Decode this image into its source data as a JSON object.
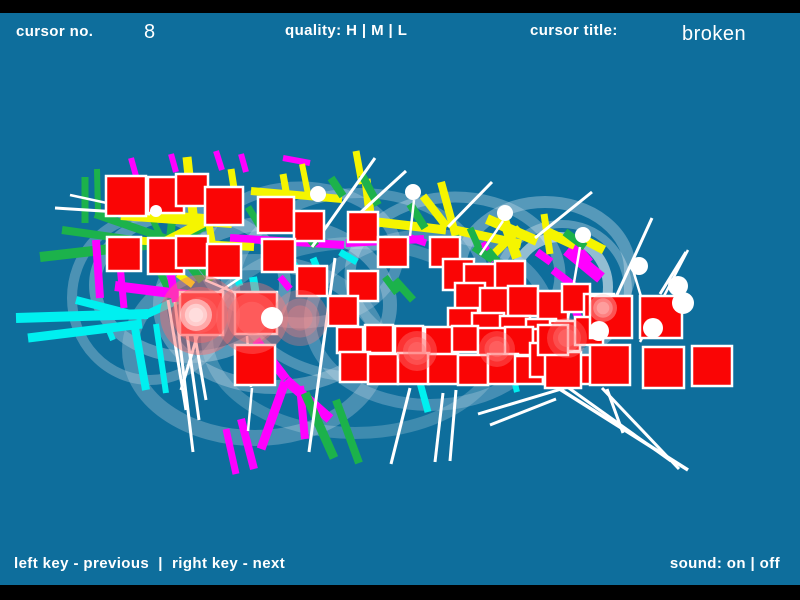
{
  "app": {
    "background": "#0E6E9C",
    "letterbox_color": "#000000",
    "text_color": "#FFFFFF"
  },
  "header": {
    "cursor_no_label": "cursor no.",
    "cursor_no_value": "8",
    "quality_label": "quality: H | M | L",
    "cursor_title_label": "cursor title:",
    "cursor_title_value": "broken"
  },
  "footer": {
    "nav_label": "left key - previous  |  right key - next",
    "sound_label": "sound: on | off"
  },
  "artwork": {
    "palette": {
      "y": "#F5F500",
      "g": "#1CB24B",
      "c": "#00F0F0",
      "m": "#FF00FF",
      "red": "#FA0505",
      "white": "#FFFFFF"
    },
    "rings": [
      [
        190,
        285,
        95,
        72,
        "rgba(255,255,255,0.30)",
        12
      ],
      [
        275,
        305,
        115,
        82,
        "rgba(165,195,215,0.45)",
        14
      ],
      [
        360,
        285,
        125,
        92,
        "rgba(255,255,255,0.25)",
        10
      ],
      [
        300,
        255,
        98,
        68,
        "rgba(185,210,228,0.35)",
        11
      ],
      [
        455,
        275,
        105,
        78,
        "rgba(255,255,255,0.28)",
        11
      ],
      [
        545,
        270,
        85,
        68,
        "rgba(195,218,232,0.40)",
        12
      ],
      [
        560,
        287,
        48,
        50,
        "rgba(255,255,255,0.55)",
        10
      ],
      [
        562,
        290,
        66,
        66,
        "rgba(255,255,255,0.30)",
        8
      ],
      [
        255,
        350,
        125,
        88,
        "rgba(160,192,212,0.40)",
        16
      ],
      [
        355,
        338,
        148,
        95,
        "rgba(255,255,255,0.20)",
        12
      ],
      [
        150,
        298,
        78,
        82,
        "rgba(178,205,222,0.38)",
        10
      ],
      [
        430,
        320,
        120,
        85,
        "rgba(200,220,235,0.30)",
        12
      ]
    ],
    "strokes": [
      [
        "g",
        40,
        257,
        172,
        242,
        10
      ],
      [
        "g",
        62,
        230,
        162,
        244,
        8
      ],
      [
        "g",
        95,
        214,
        170,
        240,
        8
      ],
      [
        "g",
        85,
        177,
        85,
        223,
        7
      ],
      [
        "g",
        97,
        169,
        98,
        214,
        6
      ],
      [
        "g",
        140,
        194,
        164,
        243,
        6
      ],
      [
        "g",
        176,
        186,
        169,
        248,
        8
      ],
      [
        "g",
        170,
        240,
        202,
        281,
        8
      ],
      [
        "g",
        172,
        242,
        206,
        226,
        8
      ],
      [
        "g",
        158,
        268,
        170,
        293,
        7
      ],
      [
        "g",
        201,
        267,
        212,
        281,
        6
      ],
      [
        "g",
        248,
        207,
        263,
        231,
        7
      ],
      [
        "c",
        16,
        318,
        148,
        314,
        10
      ],
      [
        "c",
        28,
        338,
        142,
        324,
        9
      ],
      [
        "c",
        76,
        300,
        142,
        317,
        8
      ],
      [
        "c",
        143,
        316,
        178,
        300,
        8
      ],
      [
        "c",
        134,
        322,
        146,
        390,
        8
      ],
      [
        "c",
        156,
        324,
        166,
        393,
        6
      ],
      [
        "c",
        108,
        328,
        113,
        340,
        6
      ],
      [
        "c",
        230,
        258,
        240,
        286,
        7
      ],
      [
        "c",
        253,
        277,
        261,
        324,
        8
      ],
      [
        "c",
        290,
        258,
        300,
        272,
        6
      ],
      [
        "c",
        313,
        258,
        322,
        280,
        7
      ],
      [
        "c",
        340,
        252,
        357,
        262,
        7
      ],
      [
        "c",
        470,
        271,
        479,
        288,
        7
      ],
      [
        "c",
        416,
        368,
        428,
        412,
        7
      ],
      [
        "c",
        432,
        352,
        444,
        358,
        6
      ],
      [
        "c",
        509,
        352,
        519,
        359,
        6
      ],
      [
        "c",
        509,
        360,
        517,
        392,
        6
      ],
      [
        "m",
        96,
        240,
        100,
        298,
        8
      ],
      [
        "m",
        119,
        254,
        124,
        308,
        7
      ],
      [
        "m",
        115,
        286,
        203,
        297,
        10
      ],
      [
        "m",
        170,
        271,
        176,
        302,
        8
      ],
      [
        "m",
        131,
        158,
        136,
        176,
        6
      ],
      [
        "m",
        171,
        154,
        176,
        172,
        6
      ],
      [
        "m",
        216,
        151,
        222,
        170,
        6
      ],
      [
        "m",
        241,
        154,
        246,
        172,
        6
      ],
      [
        "m",
        283,
        158,
        310,
        163,
        6
      ],
      [
        "m",
        230,
        238,
        344,
        245,
        8
      ],
      [
        "m",
        346,
        243,
        424,
        239,
        8
      ],
      [
        "m",
        383,
        245,
        400,
        251,
        7
      ],
      [
        "m",
        408,
        237,
        426,
        243,
        7
      ],
      [
        "m",
        256,
        340,
        286,
        379,
        9
      ],
      [
        "m",
        286,
        380,
        330,
        419,
        10
      ],
      [
        "m",
        285,
        382,
        261,
        449,
        9
      ],
      [
        "m",
        300,
        386,
        305,
        439,
        8
      ],
      [
        "m",
        241,
        419,
        254,
        469,
        8
      ],
      [
        "m",
        226,
        429,
        236,
        474,
        7
      ],
      [
        "m",
        280,
        277,
        290,
        289,
        7
      ],
      [
        "m",
        482,
        243,
        493,
        262,
        8
      ],
      [
        "m",
        537,
        252,
        551,
        262,
        8
      ],
      [
        "m",
        567,
        250,
        601,
        278,
        12
      ],
      [
        "m",
        553,
        270,
        574,
        286,
        8
      ],
      [
        "m",
        575,
        245,
        590,
        262,
        8
      ],
      [
        "m",
        576,
        312,
        584,
        331,
        8
      ],
      [
        "y",
        121,
        214,
        232,
        222,
        12
      ],
      [
        "y",
        128,
        240,
        254,
        247,
        8
      ],
      [
        "y",
        187,
        157,
        193,
        214,
        9
      ],
      [
        "y",
        153,
        180,
        160,
        214,
        7
      ],
      [
        "y",
        231,
        169,
        238,
        214,
        7
      ],
      [
        "y",
        251,
        191,
        342,
        199,
        8
      ],
      [
        "y",
        150,
        250,
        210,
        219,
        10
      ],
      [
        "y",
        209,
        224,
        215,
        259,
        7
      ],
      [
        "y",
        283,
        174,
        290,
        214,
        7
      ],
      [
        "y",
        356,
        151,
        362,
        184,
        7
      ],
      [
        "y",
        302,
        164,
        308,
        194,
        6
      ],
      [
        "y",
        178,
        274,
        193,
        285,
        7
      ],
      [
        "y",
        366,
        179,
        372,
        232,
        9
      ],
      [
        "y",
        377,
        222,
        446,
        230,
        9
      ],
      [
        "y",
        423,
        196,
        447,
        227,
        8
      ],
      [
        "y",
        441,
        182,
        456,
        237,
        8
      ],
      [
        "y",
        455,
        230,
        521,
        244,
        9
      ],
      [
        "y",
        487,
        219,
        537,
        241,
        10
      ],
      [
        "y",
        502,
        214,
        517,
        258,
        10
      ],
      [
        "y",
        520,
        228,
        492,
        256,
        8
      ],
      [
        "y",
        547,
        232,
        575,
        245,
        10
      ],
      [
        "y",
        544,
        214,
        550,
        254,
        7
      ],
      [
        "y",
        577,
        236,
        604,
        250,
        9
      ],
      [
        "g",
        331,
        178,
        343,
        196,
        8
      ],
      [
        "g",
        362,
        175,
        378,
        205,
        8
      ],
      [
        "g",
        410,
        204,
        425,
        228,
        8
      ],
      [
        "g",
        474,
        247,
        493,
        260,
        8
      ],
      [
        "g",
        436,
        244,
        460,
        238,
        7
      ],
      [
        "g",
        302,
        230,
        316,
        246,
        8
      ],
      [
        "g",
        385,
        277,
        397,
        293,
        7
      ],
      [
        "g",
        395,
        280,
        413,
        300,
        8
      ],
      [
        "g",
        305,
        393,
        334,
        458,
        9
      ],
      [
        "g",
        336,
        400,
        359,
        463,
        8
      ],
      [
        "g",
        462,
        305,
        472,
        315,
        6
      ],
      [
        "g",
        470,
        228,
        479,
        248,
        7
      ],
      [
        "g",
        488,
        250,
        498,
        262,
        7
      ],
      [
        "g",
        565,
        232,
        585,
        247,
        8
      ]
    ],
    "lines": [
      [
        55,
        208,
        150,
        214,
        3
      ],
      [
        70,
        195,
        148,
        212,
        2.5
      ],
      [
        205,
        280,
        245,
        297,
        2.5
      ],
      [
        240,
        278,
        207,
        300,
        2.5
      ],
      [
        312,
        247,
        375,
        158,
        3
      ],
      [
        360,
        213,
        406,
        171,
        3
      ],
      [
        448,
        227,
        492,
        182,
        3
      ],
      [
        414,
        200,
        410,
        236,
        2.5
      ],
      [
        503,
        221,
        480,
        255,
        2.5
      ],
      [
        535,
        238,
        592,
        192,
        3
      ],
      [
        580,
        247,
        566,
        330,
        2.5
      ],
      [
        600,
        332,
        652,
        218,
        3
      ],
      [
        688,
        250,
        640,
        342,
        2.5
      ],
      [
        660,
        294,
        686,
        252,
        3
      ],
      [
        646,
        313,
        633,
        270,
        2.5
      ],
      [
        168,
        300,
        186,
        410,
        3
      ],
      [
        175,
        302,
        193,
        452,
        3
      ],
      [
        183,
        305,
        199,
        420,
        3
      ],
      [
        190,
        308,
        206,
        400,
        3
      ],
      [
        208,
        300,
        181,
        390,
        3
      ],
      [
        247,
        336,
        251,
        387,
        2.5
      ],
      [
        252,
        388,
        248,
        431,
        2.5
      ],
      [
        335,
        258,
        309,
        452,
        3
      ],
      [
        410,
        388,
        391,
        464,
        3
      ],
      [
        443,
        393,
        435,
        462,
        3
      ],
      [
        456,
        390,
        450,
        461,
        3
      ],
      [
        478,
        414,
        568,
        387,
        3
      ],
      [
        490,
        425,
        556,
        399,
        3
      ],
      [
        558,
        388,
        688,
        470,
        3.5
      ],
      [
        566,
        386,
        671,
        461,
        3
      ],
      [
        602,
        388,
        679,
        469,
        3
      ],
      [
        607,
        389,
        623,
        433,
        3
      ]
    ],
    "squares": [
      [
        106,
        176,
        40
      ],
      [
        148,
        177,
        36
      ],
      [
        176,
        174,
        32
      ],
      [
        205,
        187,
        38
      ],
      [
        258,
        197,
        36
      ],
      [
        294,
        211,
        30
      ],
      [
        107,
        237,
        34
      ],
      [
        148,
        238,
        36
      ],
      [
        176,
        236,
        32
      ],
      [
        207,
        244,
        34
      ],
      [
        262,
        239,
        33
      ],
      [
        297,
        266,
        30
      ],
      [
        348,
        212,
        30
      ],
      [
        378,
        237,
        30
      ],
      [
        430,
        237,
        30
      ],
      [
        348,
        271,
        30
      ],
      [
        443,
        259,
        31
      ],
      [
        464,
        264,
        32
      ],
      [
        495,
        261,
        30
      ],
      [
        455,
        283,
        30
      ],
      [
        480,
        288,
        32
      ],
      [
        508,
        286,
        30
      ],
      [
        538,
        291,
        30
      ],
      [
        562,
        284,
        28
      ],
      [
        584,
        294,
        30
      ],
      [
        448,
        308,
        30
      ],
      [
        472,
        313,
        32
      ],
      [
        500,
        316,
        30
      ],
      [
        526,
        319,
        30
      ],
      [
        550,
        321,
        30
      ],
      [
        575,
        317,
        28
      ],
      [
        328,
        296,
        30
      ],
      [
        337,
        327,
        26
      ],
      [
        365,
        325,
        28
      ],
      [
        395,
        326,
        28
      ],
      [
        425,
        327,
        28
      ],
      [
        452,
        326,
        26
      ],
      [
        478,
        328,
        28
      ],
      [
        505,
        327,
        28
      ],
      [
        533,
        329,
        26
      ],
      [
        340,
        352,
        30
      ],
      [
        368,
        354,
        30
      ],
      [
        398,
        353,
        31
      ],
      [
        428,
        354,
        30
      ],
      [
        458,
        355,
        30
      ],
      [
        488,
        354,
        30
      ],
      [
        515,
        356,
        28
      ],
      [
        543,
        354,
        30
      ],
      [
        571,
        355,
        29
      ],
      [
        530,
        343,
        34
      ],
      [
        545,
        352,
        36
      ],
      [
        538,
        325,
        30
      ],
      [
        590,
        296,
        42
      ],
      [
        640,
        296,
        42
      ],
      [
        180,
        292,
        43
      ],
      [
        235,
        292,
        42
      ],
      [
        235,
        345,
        40
      ],
      [
        590,
        345,
        40
      ],
      [
        643,
        347,
        41
      ],
      [
        692,
        346,
        40
      ]
    ],
    "glows": [
      [
        200,
        315,
        40,
        "rgba(255,105,105,0.45)"
      ],
      [
        252,
        318,
        36,
        "rgba(255,115,115,0.40)"
      ],
      [
        300,
        318,
        28,
        "rgba(255,130,130,0.32)"
      ],
      [
        196,
        315,
        16,
        "rgba(255,235,235,0.55)"
      ],
      [
        417,
        351,
        20,
        "rgba(255,120,120,0.40)"
      ],
      [
        497,
        349,
        18,
        "rgba(255,130,130,0.35)"
      ],
      [
        567,
        338,
        20,
        "rgba(255,140,140,0.32)"
      ],
      [
        603,
        308,
        14,
        "rgba(255,200,200,0.40)"
      ]
    ],
    "dots": [
      [
        156,
        211,
        6
      ],
      [
        272,
        318,
        11
      ],
      [
        318,
        194,
        8
      ],
      [
        413,
        192,
        8
      ],
      [
        505,
        213,
        8
      ],
      [
        583,
        235,
        8
      ],
      [
        639,
        266,
        9
      ],
      [
        678,
        286,
        10
      ],
      [
        683,
        303,
        11
      ],
      [
        653,
        328,
        10
      ],
      [
        599,
        331,
        10
      ]
    ]
  }
}
